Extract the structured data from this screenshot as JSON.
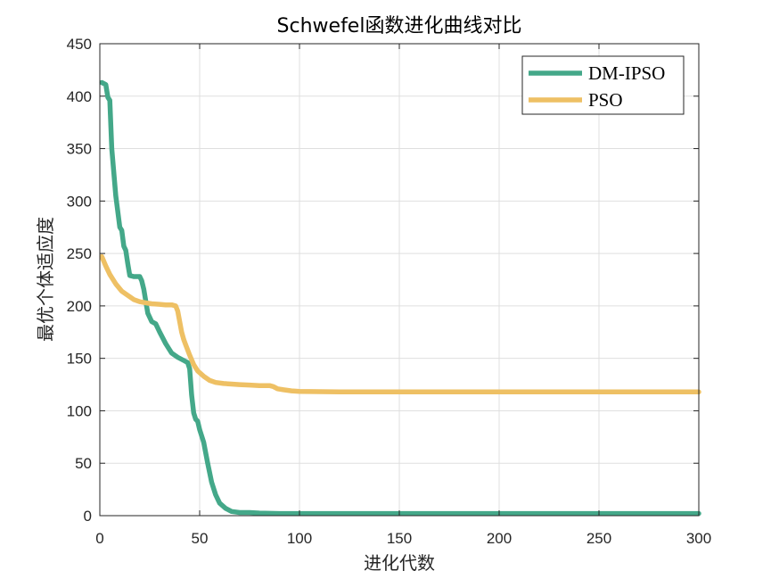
{
  "chart_data": {
    "type": "line",
    "title": "Schwefel函数进化曲线对比",
    "xlabel": "进化代数",
    "ylabel": "最优个体适应度",
    "xlim": [
      0,
      300
    ],
    "ylim": [
      0,
      450
    ],
    "xticks": [
      0,
      50,
      100,
      150,
      200,
      250,
      300
    ],
    "yticks": [
      0,
      50,
      100,
      150,
      200,
      250,
      300,
      350,
      400,
      450
    ],
    "xtick_labels": [
      "0",
      "50",
      "100",
      "150",
      "200",
      "250",
      "300"
    ],
    "ytick_labels": [
      "0",
      "50",
      "100",
      "150",
      "200",
      "250",
      "300",
      "350",
      "400",
      "450"
    ],
    "grid": true,
    "legend_position": "top-right",
    "series": [
      {
        "name": "DM-IPSO",
        "color": "#44a889",
        "x": [
          1,
          3,
          4,
          5,
          6,
          8,
          10,
          11,
          12,
          13,
          14,
          15,
          17,
          20,
          21,
          22,
          24,
          26,
          28,
          30,
          33,
          36,
          39,
          42,
          44,
          45,
          46,
          47,
          48,
          49,
          50,
          52,
          54,
          56,
          58,
          60,
          63,
          66,
          70,
          75,
          80,
          90,
          100,
          120,
          150,
          200,
          250,
          300
        ],
        "y": [
          413,
          411,
          399,
          396,
          350,
          305,
          275,
          272,
          257,
          253,
          240,
          229,
          228,
          228,
          224,
          216,
          193,
          185,
          183,
          175,
          164,
          155,
          151,
          148,
          146,
          140,
          115,
          98,
          92,
          90,
          82,
          70,
          50,
          32,
          20,
          12,
          7,
          4,
          3,
          3,
          2.5,
          2,
          2,
          2,
          2,
          2,
          2,
          2
        ]
      },
      {
        "name": "PSO",
        "color": "#eec064",
        "x": [
          1,
          3,
          5,
          8,
          11,
          14,
          17,
          20,
          23,
          26,
          30,
          33,
          36,
          38,
          39,
          40,
          41,
          42,
          43,
          45,
          47,
          49,
          52,
          55,
          58,
          62,
          66,
          70,
          75,
          80,
          85,
          87,
          89,
          92,
          96,
          100,
          120,
          150,
          200,
          250,
          300
        ],
        "y": [
          247,
          238,
          230,
          221,
          214,
          210,
          206,
          204,
          203,
          202,
          201.5,
          201,
          201,
          200,
          195,
          185,
          175,
          168,
          163,
          153,
          144,
          138,
          133,
          129,
          127,
          126,
          125.5,
          125,
          124.5,
          124,
          124,
          123,
          121,
          120,
          119,
          118.5,
          118,
          118,
          118,
          118,
          118
        ]
      }
    ]
  }
}
